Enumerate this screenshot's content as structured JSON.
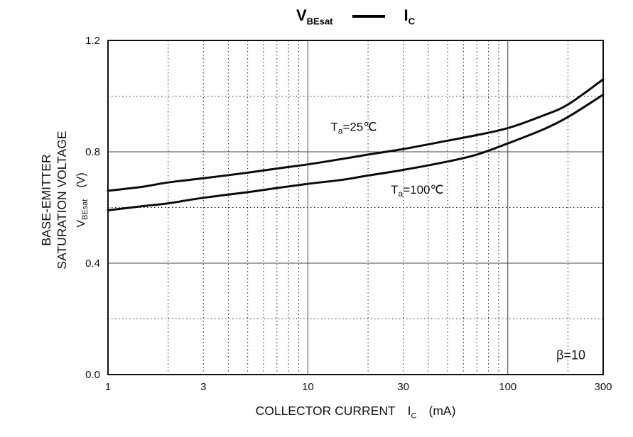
{
  "chart_data": {
    "type": "line",
    "x_scale": "log",
    "xlim": [
      1,
      300
    ],
    "ylim": [
      0.0,
      1.2
    ],
    "grid": {
      "x_solid": [
        10,
        100
      ],
      "x_dotted": [
        2,
        3,
        4,
        5,
        6,
        7,
        8,
        9,
        20,
        30,
        40,
        50,
        60,
        70,
        80,
        90,
        200
      ],
      "y_solid": [
        0.4,
        0.8
      ],
      "y_dotted": [
        0.2,
        0.6,
        1.0
      ]
    },
    "x_ticks": [
      {
        "v": 1,
        "label": "1"
      },
      {
        "v": 3,
        "label": "3"
      },
      {
        "v": 10,
        "label": "10"
      },
      {
        "v": 30,
        "label": "30"
      },
      {
        "v": 100,
        "label": "100"
      },
      {
        "v": 300,
        "label": "300"
      }
    ],
    "y_ticks": [
      {
        "v": 0.0,
        "label": "0.0"
      },
      {
        "v": 0.4,
        "label": "0.4"
      },
      {
        "v": 0.8,
        "label": "0.8"
      },
      {
        "v": 1.2,
        "label": "1.2"
      }
    ],
    "title": {
      "left": "V",
      "left_sub": "BEsat",
      "right": "I",
      "right_sub": "C"
    },
    "xlabel": "COLLECTOR CURRENT",
    "xlabel_sym": "I",
    "xlabel_sym_sub": "C",
    "xlabel_unit": "(mA)",
    "ylabel_line1": "BASE-EMITTER",
    "ylabel_line2": "SATURATION VOLTAGE",
    "ylabel_sym": "V",
    "ylabel_sym_sub": "BEsat",
    "ylabel_unit": "(V)",
    "series": [
      {
        "name": "Ta=25C",
        "x": [
          1,
          1.5,
          2,
          3,
          5,
          7,
          10,
          15,
          20,
          30,
          50,
          70,
          100,
          150,
          200,
          300
        ],
        "y": [
          0.66,
          0.675,
          0.69,
          0.705,
          0.725,
          0.74,
          0.755,
          0.775,
          0.79,
          0.81,
          0.84,
          0.86,
          0.885,
          0.93,
          0.97,
          1.06
        ]
      },
      {
        "name": "Ta=100C",
        "x": [
          1,
          1.5,
          2,
          3,
          5,
          7,
          10,
          15,
          20,
          30,
          50,
          70,
          100,
          150,
          200,
          300
        ],
        "y": [
          0.59,
          0.605,
          0.615,
          0.635,
          0.655,
          0.67,
          0.685,
          0.7,
          0.715,
          0.735,
          0.765,
          0.79,
          0.83,
          0.88,
          0.925,
          1.005
        ]
      }
    ],
    "annotations": [
      {
        "id": "ta-25",
        "x": 13,
        "y": 0.875,
        "segments": [
          {
            "t": "T"
          },
          {
            "t": "a",
            "sub": true
          },
          {
            "t": "=25℃"
          }
        ]
      },
      {
        "id": "ta-100",
        "x": 26,
        "y": 0.65,
        "segments": [
          {
            "t": "T"
          },
          {
            "t": "a",
            "sub": true
          },
          {
            "t": "=100℃"
          }
        ]
      },
      {
        "id": "beta",
        "x": 175,
        "y": 0.055,
        "segments": [
          {
            "t": "β=10"
          }
        ],
        "beta": true
      }
    ],
    "legend_position": "top-center",
    "grid_on": true
  }
}
